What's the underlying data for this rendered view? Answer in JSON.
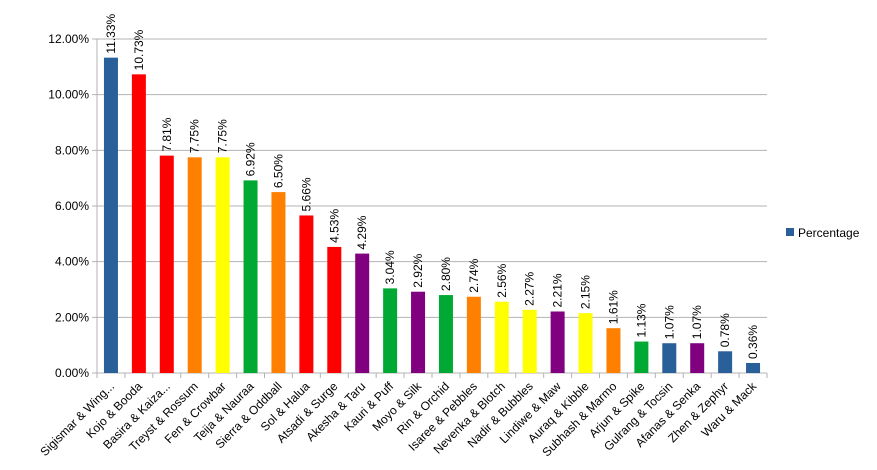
{
  "chart_data": {
    "type": "bar",
    "title": "",
    "xlabel": "",
    "ylabel": "",
    "ylim": [
      0,
      12
    ],
    "y_tick_values": [
      0,
      2,
      4,
      6,
      8,
      10,
      12
    ],
    "y_tick_labels": [
      "0.00%",
      "2.00%",
      "4.00%",
      "6.00%",
      "8.00%",
      "10.00%",
      "12.00%"
    ],
    "grid": true,
    "legend_position": "right",
    "categories": [
      "Sigismar & Wing...",
      "Kojo & Booda",
      "Basira & Kaiza...",
      "Treyst & Rossum",
      "Fen & Crowbar",
      "Teija & Nauraa",
      "Sierra & Oddball",
      "Sol & Halua",
      "Atsadi & Surge",
      "Akesha & Taru",
      "Kauri & Puff",
      "Moyo & Silk",
      "Rin & Orchid",
      "Isaree & Pebbles",
      "Nevenka & Blotch",
      "Nadir & Bubbles",
      "Lindiwe & Maw",
      "Auraq & Kibble",
      "Subhash & Marmo",
      "Arjun & Spike",
      "Gulrang & Tocsin",
      "Afanas & Senka",
      "Zhen & Zephyr",
      "Waru & Mack"
    ],
    "series": [
      {
        "name": "Percentage",
        "values": [
          11.33,
          10.73,
          7.81,
          7.75,
          7.75,
          6.92,
          6.5,
          5.66,
          4.53,
          4.29,
          3.04,
          2.92,
          2.8,
          2.74,
          2.56,
          2.27,
          2.21,
          2.15,
          1.61,
          1.13,
          1.07,
          1.07,
          0.78,
          0.36
        ],
        "value_labels": [
          "11.33%",
          "10.73%",
          "7.81%",
          "7.75%",
          "7.75%",
          "6.92%",
          "6.50%",
          "5.66%",
          "4.53%",
          "4.29%",
          "3.04%",
          "2.92%",
          "2.80%",
          "2.74%",
          "2.56%",
          "2.27%",
          "2.21%",
          "2.15%",
          "1.61%",
          "1.13%",
          "1.07%",
          "1.07%",
          "0.78%",
          "0.36%"
        ],
        "colors": [
          "#2a6099",
          "#ff0000",
          "#ff0000",
          "#ff8000",
          "#ffff00",
          "#00a933",
          "#ff8000",
          "#ff0000",
          "#ff0000",
          "#800080",
          "#00a933",
          "#800080",
          "#00a933",
          "#ff8000",
          "#ffff00",
          "#ffff00",
          "#800080",
          "#ffff00",
          "#ff8000",
          "#00a933",
          "#2a6099",
          "#800080",
          "#2a6099",
          "#2a6099"
        ]
      }
    ],
    "legend": [
      {
        "label": "Percentage",
        "color": "#2a6099"
      }
    ],
    "colors": {
      "grid": "#b3b3b3",
      "axis": "#b3b3b3",
      "text": "#000000"
    }
  }
}
